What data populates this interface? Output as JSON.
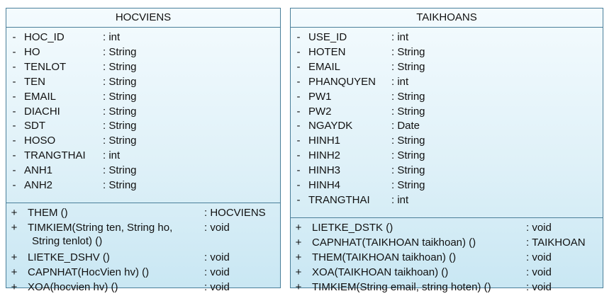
{
  "classes": [
    {
      "name": "HOCVIENS",
      "attributes": [
        {
          "vis": "-",
          "name": "HOC_ID",
          "type": ": int"
        },
        {
          "vis": "-",
          "name": "HO",
          "type": ": String"
        },
        {
          "vis": "-",
          "name": "TENLOT",
          "type": ": String"
        },
        {
          "vis": "-",
          "name": "TEN",
          "type": ": String"
        },
        {
          "vis": "-",
          "name": "EMAIL",
          "type": ": String"
        },
        {
          "vis": "-",
          "name": "DIACHI",
          "type": ": String"
        },
        {
          "vis": "-",
          "name": "SDT",
          "type": ": String"
        },
        {
          "vis": "-",
          "name": "HOSO",
          "type": ": String"
        },
        {
          "vis": "-",
          "name": "TRANGTHAI",
          "type": ": int"
        },
        {
          "vis": "-",
          "name": "ANH1",
          "type": ": String"
        },
        {
          "vis": "-",
          "name": "ANH2",
          "type": ": String"
        }
      ],
      "operations": [
        {
          "vis": "+",
          "name": "THEM ()",
          "type": ": HOCVIENS"
        },
        {
          "vis": "+",
          "name": "TIMKIEM(String ten, String ho,",
          "name2": "String tenlot) ()",
          "type": ": void"
        },
        {
          "vis": "+",
          "name": "LIETKE_DSHV ()",
          "type": ": void"
        },
        {
          "vis": "+",
          "name": "CAPNHAT(HocVien hv) ()",
          "type": ": void"
        },
        {
          "vis": "+",
          "name": "XOA(hocvien hv) ()",
          "type": ": void"
        }
      ]
    },
    {
      "name": "TAIKHOANS",
      "attributes": [
        {
          "vis": "-",
          "name": "USE_ID",
          "type": ": int"
        },
        {
          "vis": "-",
          "name": "HOTEN",
          "type": ": String"
        },
        {
          "vis": "-",
          "name": "EMAIL",
          "type": ": String"
        },
        {
          "vis": "-",
          "name": "PHANQUYEN",
          "type": ": int"
        },
        {
          "vis": "-",
          "name": "PW1",
          "type": ": String"
        },
        {
          "vis": "-",
          "name": "PW2",
          "type": ": String"
        },
        {
          "vis": "-",
          "name": "NGAYDK",
          "type": ": Date"
        },
        {
          "vis": "-",
          "name": "HINH1",
          "type": ": String"
        },
        {
          "vis": "-",
          "name": "HINH2",
          "type": ": String"
        },
        {
          "vis": "-",
          "name": "HINH3",
          "type": ": String"
        },
        {
          "vis": "-",
          "name": "HINH4",
          "type": ": String"
        },
        {
          "vis": "-",
          "name": "TRANGTHAI",
          "type": ": int"
        }
      ],
      "operations": [
        {
          "vis": "+",
          "name": "LIETKE_DSTK ()",
          "type": ": void"
        },
        {
          "vis": "+",
          "name": "CAPNHAT(TAIKHOAN taikhoan) ()",
          "type": ": TAIKHOAN"
        },
        {
          "vis": "+",
          "name": "THEM(TAIKHOAN taikhoan) ()",
          "type": ": void"
        },
        {
          "vis": "+",
          "name": "XOA(TAIKHOAN taikhoan) ()",
          "type": ": void"
        },
        {
          "vis": "+",
          "name": "TIMKIEM(String email, string hoten) ()",
          "type": ": void"
        }
      ]
    }
  ]
}
